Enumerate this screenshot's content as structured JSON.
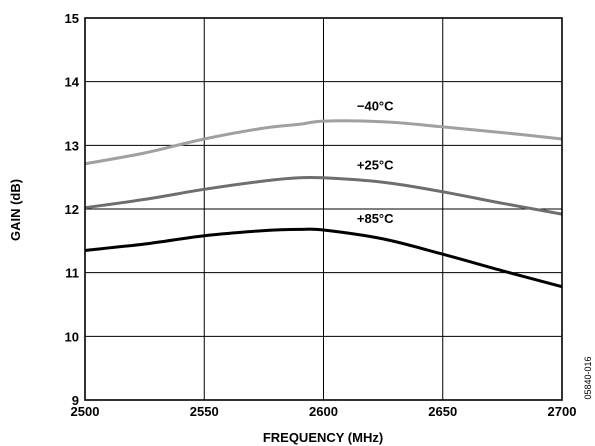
{
  "chart_data": {
    "type": "line",
    "title": "",
    "xlabel": "FREQUENCY (MHz)",
    "ylabel": "GAIN (dB)",
    "xlim": [
      2500,
      2700
    ],
    "ylim": [
      9,
      15
    ],
    "xticks": [
      2500,
      2550,
      2600,
      2650,
      2700
    ],
    "yticks": [
      9,
      10,
      11,
      12,
      13,
      14,
      15
    ],
    "grid": true,
    "legend": "inline labels above curves",
    "series": [
      {
        "name": "−40°C",
        "color": "#a0a0a0",
        "label_at": [
          2614,
          13.55
        ],
        "points": [
          [
            2500,
            12.71
          ],
          [
            2525,
            12.88
          ],
          [
            2550,
            13.1
          ],
          [
            2575,
            13.27
          ],
          [
            2590,
            13.33
          ],
          [
            2600,
            13.38
          ],
          [
            2625,
            13.37
          ],
          [
            2650,
            13.29
          ],
          [
            2675,
            13.2
          ],
          [
            2700,
            13.1
          ]
        ]
      },
      {
        "name": "+25°C",
        "color": "#6e6e6e",
        "label_at": [
          2614,
          12.62
        ],
        "points": [
          [
            2500,
            12.02
          ],
          [
            2525,
            12.15
          ],
          [
            2550,
            12.31
          ],
          [
            2575,
            12.44
          ],
          [
            2590,
            12.49
          ],
          [
            2600,
            12.49
          ],
          [
            2625,
            12.42
          ],
          [
            2650,
            12.27
          ],
          [
            2675,
            12.09
          ],
          [
            2700,
            11.92
          ]
        ]
      },
      {
        "name": "+85°C",
        "color": "#000000",
        "label_at": [
          2614,
          11.78
        ],
        "points": [
          [
            2500,
            11.35
          ],
          [
            2525,
            11.45
          ],
          [
            2550,
            11.58
          ],
          [
            2575,
            11.66
          ],
          [
            2590,
            11.68
          ],
          [
            2600,
            11.67
          ],
          [
            2625,
            11.53
          ],
          [
            2650,
            11.29
          ],
          [
            2675,
            11.03
          ],
          [
            2700,
            10.78
          ]
        ]
      }
    ]
  },
  "figure_id": "05840-016"
}
